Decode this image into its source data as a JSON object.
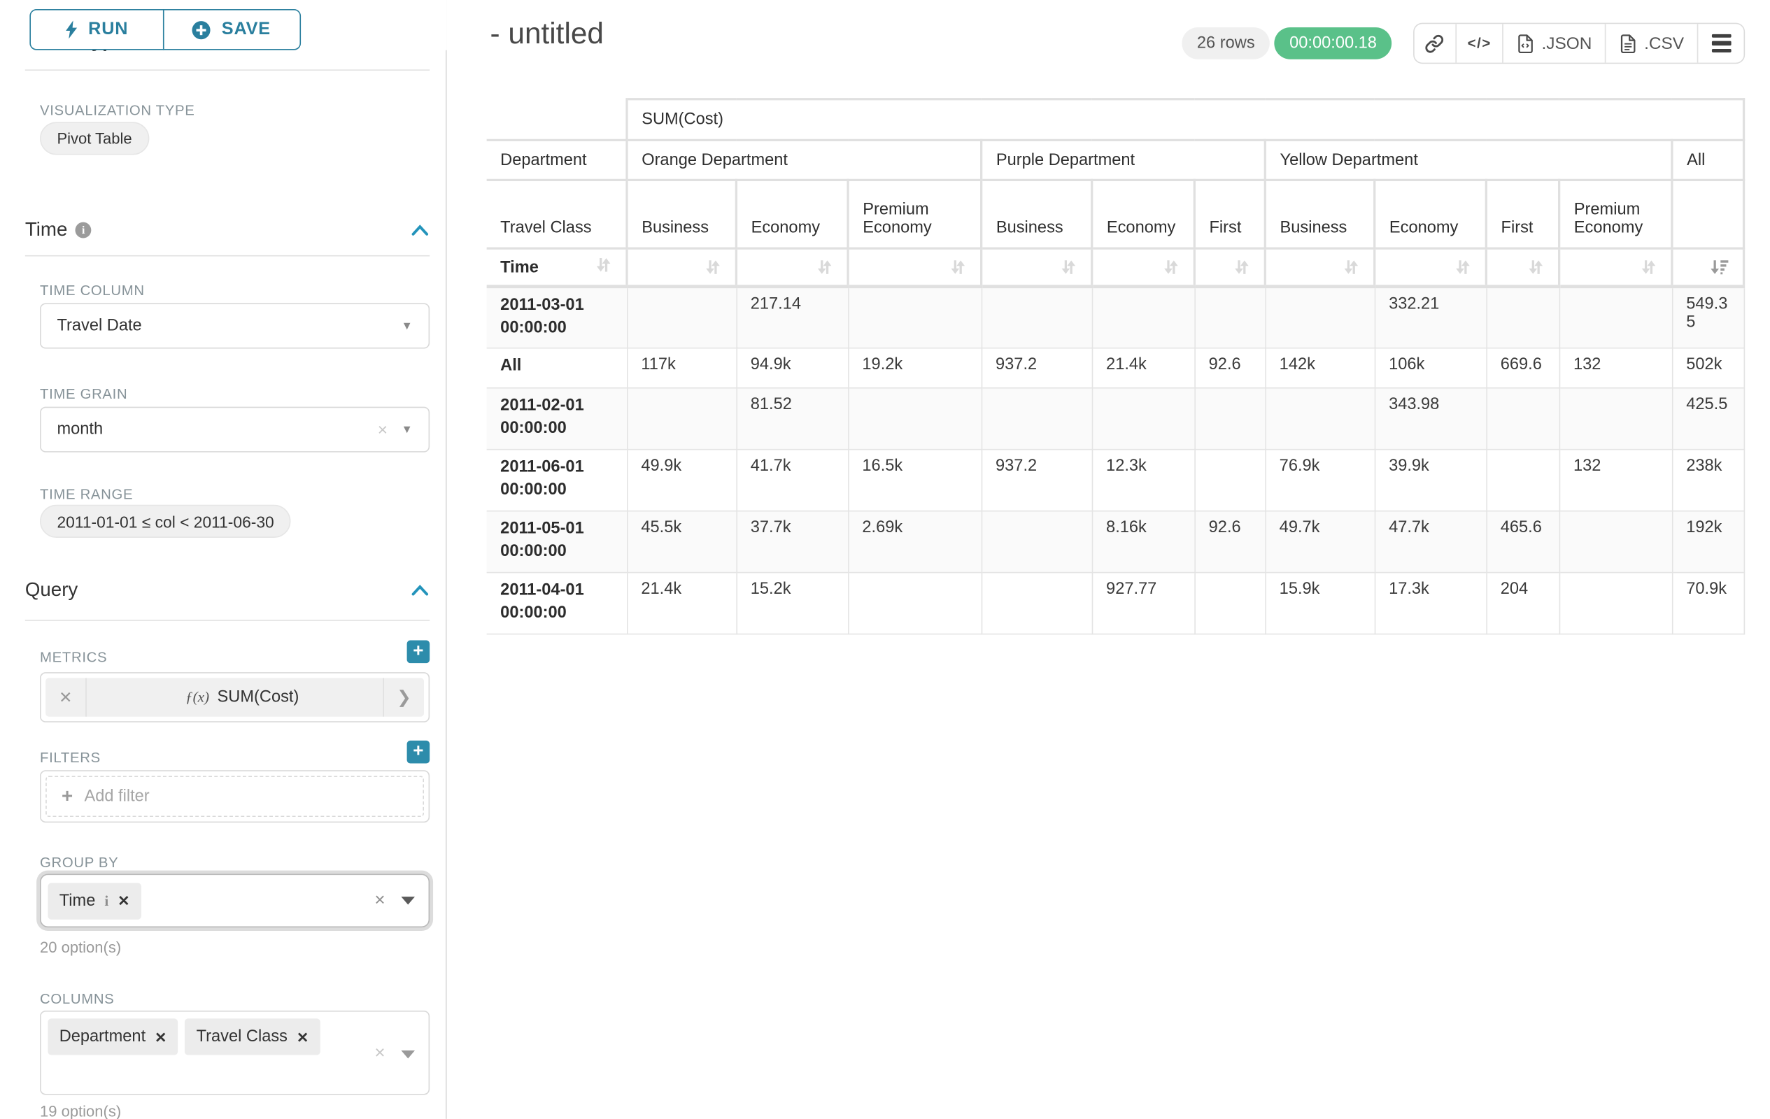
{
  "sidebar": {
    "run_label": "RUN",
    "save_label": "SAVE",
    "chart_type_heading": "Chart Type",
    "visualization_type_label": "VISUALIZATION TYPE",
    "visualization_type_value": "Pivot Table",
    "time": {
      "heading": "Time",
      "time_column_label": "TIME COLUMN",
      "time_column_value": "Travel Date",
      "time_grain_label": "TIME GRAIN",
      "time_grain_value": "month",
      "time_range_label": "TIME RANGE",
      "time_range_value": "2011-01-01 ≤ col < 2011-06-30"
    },
    "query": {
      "heading": "Query",
      "metrics_label": "METRICS",
      "metric_fx": "ƒ(x)",
      "metric_name": "SUM(Cost)",
      "filters_label": "FILTERS",
      "add_filter_label": "Add filter",
      "group_by_label": "GROUP BY",
      "group_by_values": [
        "Time"
      ],
      "group_by_hint": "20 option(s)",
      "columns_label": "COLUMNS",
      "columns_values": [
        "Department",
        "Travel Class"
      ],
      "columns_hint": "19 option(s)"
    }
  },
  "header": {
    "title": "- untitled",
    "row_count_badge": "26 rows",
    "timer_badge": "00:00:00.18",
    "json_label": ".JSON",
    "csv_label": ".CSV"
  },
  "colors": {
    "accent_teal": "#2a7f9e",
    "plus_teal": "#2d8cab",
    "success_green": "#5ac189"
  },
  "chart_data": {
    "type": "table",
    "metric_header": "SUM(Cost)",
    "row_dimension": "Time",
    "col_dimensions": [
      "Department",
      "Travel Class"
    ],
    "column_groups": [
      {
        "label": "Orange Department",
        "children": [
          "Business",
          "Economy",
          "Premium Economy"
        ]
      },
      {
        "label": "Purple Department",
        "children": [
          "Business",
          "Economy",
          "First"
        ]
      },
      {
        "label": "Yellow Department",
        "children": [
          "Business",
          "Economy",
          "First",
          "Premium Economy"
        ]
      },
      {
        "label": "All",
        "children": [
          ""
        ]
      }
    ],
    "rows": [
      {
        "label": "2011-03-01 00:00:00",
        "values": [
          "",
          "217.14",
          "",
          "",
          "",
          "",
          "",
          "332.21",
          "",
          "",
          "549.35"
        ]
      },
      {
        "label": "All",
        "values": [
          "117k",
          "94.9k",
          "19.2k",
          "937.2",
          "21.4k",
          "92.6",
          "142k",
          "106k",
          "669.6",
          "132",
          "502k"
        ]
      },
      {
        "label": "2011-02-01 00:00:00",
        "values": [
          "",
          "81.52",
          "",
          "",
          "",
          "",
          "",
          "343.98",
          "",
          "",
          "425.5"
        ]
      },
      {
        "label": "2011-06-01 00:00:00",
        "values": [
          "49.9k",
          "41.7k",
          "16.5k",
          "937.2",
          "12.3k",
          "",
          "76.9k",
          "39.9k",
          "",
          "132",
          "238k"
        ]
      },
      {
        "label": "2011-05-01 00:00:00",
        "values": [
          "45.5k",
          "37.7k",
          "2.69k",
          "",
          "8.16k",
          "92.6",
          "49.7k",
          "47.7k",
          "465.6",
          "",
          "192k"
        ]
      },
      {
        "label": "2011-04-01 00:00:00",
        "values": [
          "21.4k",
          "15.2k",
          "",
          "",
          "927.77",
          "",
          "15.9k",
          "17.3k",
          "204",
          "",
          "70.9k"
        ]
      }
    ],
    "sorted_column": "All",
    "sort_direction": "desc"
  }
}
